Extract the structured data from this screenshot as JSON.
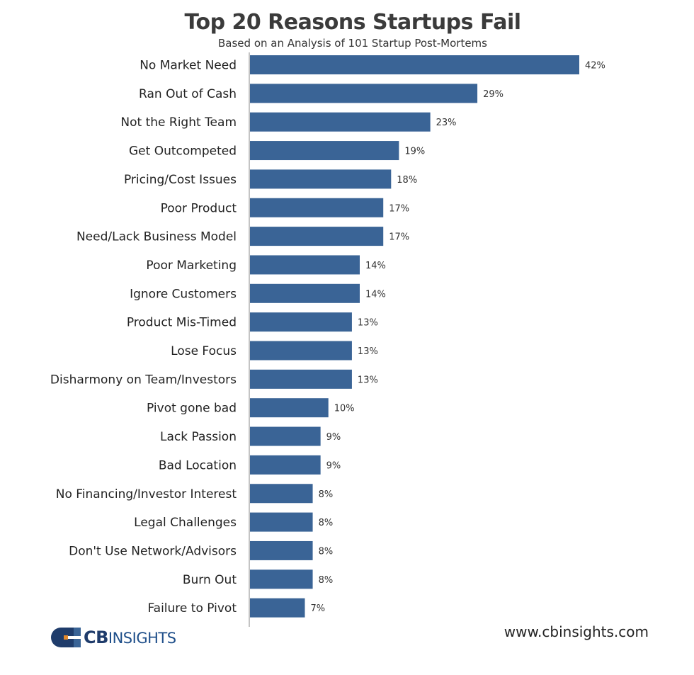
{
  "chart_data": {
    "type": "bar",
    "orientation": "horizontal",
    "title": "Top 20 Reasons Startups Fail",
    "subtitle": "Based on an Analysis of 101 Startup Post-Mortems",
    "categories": [
      "No Market Need",
      "Ran Out of Cash",
      "Not the Right Team",
      "Get Outcompeted",
      "Pricing/Cost Issues",
      "Poor Product",
      "Need/Lack Business Model",
      "Poor Marketing",
      "Ignore Customers",
      "Product Mis-Timed",
      "Lose Focus",
      "Disharmony on Team/Investors",
      "Pivot gone bad",
      "Lack Passion",
      "Bad Location",
      "No Financing/Investor Interest",
      "Legal Challenges",
      "Don't Use Network/Advisors",
      "Burn Out",
      "Failure to Pivot"
    ],
    "values": [
      42,
      29,
      23,
      19,
      18,
      17,
      17,
      14,
      14,
      13,
      13,
      13,
      10,
      9,
      9,
      8,
      8,
      8,
      8,
      7
    ],
    "value_labels": [
      "42%",
      "29%",
      "23%",
      "19%",
      "18%",
      "17%",
      "17%",
      "14%",
      "14%",
      "13%",
      "13%",
      "13%",
      "10%",
      "9%",
      "9%",
      "8%",
      "8%",
      "8%",
      "8%",
      "7%"
    ],
    "unit": "%",
    "xlim": [
      0,
      42
    ],
    "grid": false,
    "legend": "none",
    "bar_color": "#3a6496"
  },
  "footer": {
    "logo_bold": "CB",
    "logo_rest": "INSIGHTS",
    "website": "www.cbinsights.com"
  },
  "colors": {
    "bar": "#3a6496",
    "logo_dark": "#1f3c6b",
    "logo_orange": "#e58a2c"
  }
}
